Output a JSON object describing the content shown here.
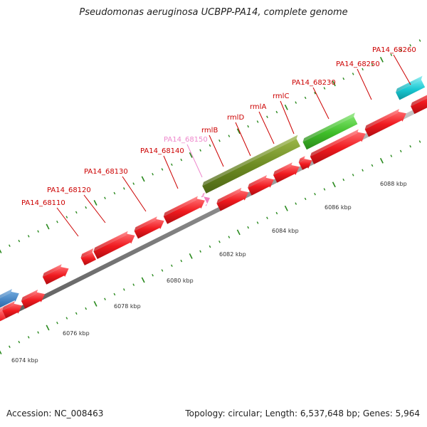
{
  "title": "Pseudomonas aeruginosa UCBPP-PA14, complete genome",
  "footer": {
    "accession": "Accession: NC_008463",
    "summary": "Topology: circular; Length: 6,537,648 bp; Genes: 5,964"
  },
  "colors": {
    "gene_red": "#e8141b",
    "gene_green": "#42c12b",
    "gene_olive": "#6f8a24",
    "gene_blue": "#3f7fc0",
    "gene_cyan": "#19c8d2",
    "gene_pink": "#f080c0",
    "tick_green": "#2a8a1e",
    "backbone": "#8c8c8c",
    "label_red": "#cc0000",
    "label_pink": "#ee88cc"
  },
  "scale": {
    "ticks": [
      {
        "label": "6074 kbp"
      },
      {
        "label": "6076 kbp"
      },
      {
        "label": "6078 kbp"
      },
      {
        "label": "6080 kbp"
      },
      {
        "label": "6082 kbp"
      },
      {
        "label": "6084 kbp"
      },
      {
        "label": "6086 kbp"
      },
      {
        "label": "6088 kbp"
      }
    ]
  },
  "gene_labels": [
    {
      "text": "PA14_68110",
      "color": "red"
    },
    {
      "text": "PA14_68120",
      "color": "red"
    },
    {
      "text": "PA14_68130",
      "color": "red"
    },
    {
      "text": "PA14_68140",
      "color": "red"
    },
    {
      "text": "PA14_68150",
      "color": "pink"
    },
    {
      "text": "rmlB",
      "color": "red"
    },
    {
      "text": "rmlD",
      "color": "red"
    },
    {
      "text": "rmlA",
      "color": "red"
    },
    {
      "text": "rmlC",
      "color": "red"
    },
    {
      "text": "PA14_68230",
      "color": "red"
    },
    {
      "text": "PA14_68250",
      "color": "red"
    },
    {
      "text": "PA14_68260",
      "color": "red"
    }
  ]
}
